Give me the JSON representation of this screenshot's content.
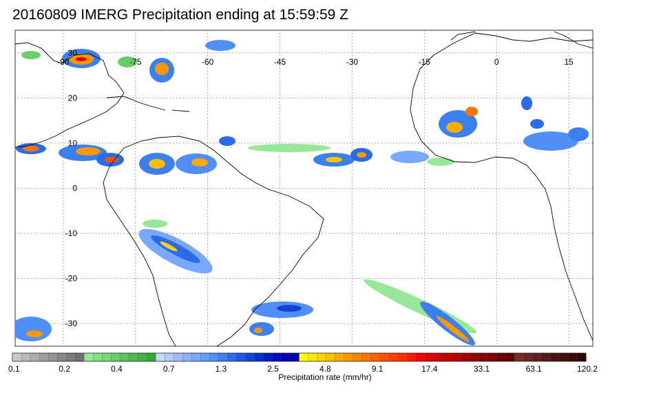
{
  "title": "20160809 IMERG Precipitation ending at 15:59:59 Z",
  "map": {
    "lon_labels": [
      "-90",
      "-75",
      "-60",
      "-45",
      "-30",
      "-15",
      "0",
      "15"
    ],
    "lat_labels": [
      "30",
      "20",
      "10",
      "0",
      "-10",
      "-20",
      "-30"
    ],
    "lon_values": [
      -90,
      -75,
      -60,
      -45,
      -30,
      -15,
      0,
      15
    ],
    "lat_values": [
      30,
      20,
      10,
      0,
      -10,
      -20,
      -30
    ],
    "lon_range": [
      -100,
      20
    ],
    "lat_range": [
      35,
      -35
    ],
    "gridlines": "dotted"
  },
  "colorbar": {
    "label": "Precipitation rate (mm/hr)",
    "tick_labels": [
      "0.1",
      "0.2",
      "0.4",
      "0.7",
      "1.3",
      "2.5",
      "4.8",
      "9.1",
      "17.4",
      "33.1",
      "63.1",
      "120.2"
    ],
    "colors": [
      "#c8c8c8",
      "#b9b9b9",
      "#adadad",
      "#a0a0a0",
      "#949494",
      "#888888",
      "#7c7c7c",
      "#707070",
      "#96e896",
      "#86e086",
      "#77d877",
      "#68cf68",
      "#5ac65a",
      "#4cbd4c",
      "#40b340",
      "#35a935",
      "#c8d8ff",
      "#b4caff",
      "#a0bcff",
      "#8cb2ff",
      "#78a8ff",
      "#649cff",
      "#508ef8",
      "#3c80f0",
      "#2a6ce8",
      "#1c58e2",
      "#1044d8",
      "#0630cc",
      "#001cc0",
      "#000ebb",
      "#0000b2",
      "#0000a6",
      "#ffff00",
      "#ffe800",
      "#ffd400",
      "#ffc000",
      "#ffac00",
      "#ff9800",
      "#ff8600",
      "#ff7400",
      "#ff6200",
      "#ff5000",
      "#ff3e00",
      "#ff2c00",
      "#ff1a00",
      "#f00800",
      "#e00000",
      "#d00000",
      "#c40000",
      "#b40000",
      "#a40000",
      "#960000",
      "#860000",
      "#780000",
      "#6a0000",
      "#5c0000",
      "#7a2c2c",
      "#6e2626",
      "#622020",
      "#571a1a",
      "#4c1414",
      "#420f0f",
      "#380a0a",
      "#2e0606"
    ]
  }
}
